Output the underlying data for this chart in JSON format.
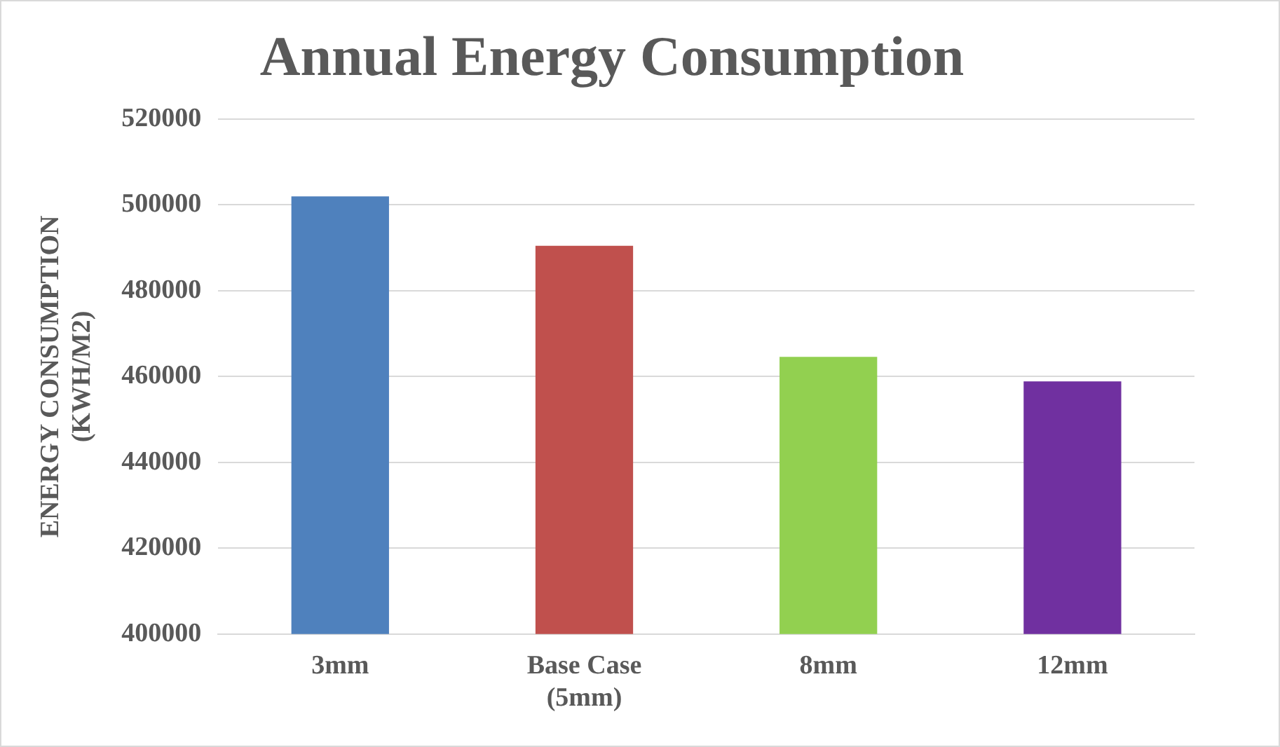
{
  "chart_data": {
    "type": "bar",
    "title": "Annual Energy Consumption",
    "ylabel": "ENERGY CONSUMPTION\n(KWH/M2)",
    "categories": [
      "3mm",
      "Base Case (5mm)",
      "8mm",
      "12mm"
    ],
    "values": [
      502000,
      490500,
      464600,
      458900
    ],
    "colors": [
      "#4f81bd",
      "#c0504d",
      "#92d050",
      "#7030a0"
    ],
    "ylim": [
      400000,
      520000
    ],
    "yticks": [
      400000,
      420000,
      440000,
      460000,
      480000,
      500000,
      520000
    ],
    "grid": "y",
    "legend": false
  }
}
